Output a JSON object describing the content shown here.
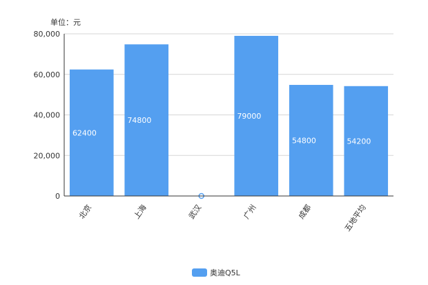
{
  "chart_data": {
    "type": "bar",
    "unit_label": "单位：元",
    "categories": [
      "北京",
      "上海",
      "武汉",
      "广州",
      "成都",
      "五地平均"
    ],
    "series": [
      {
        "name": "奥迪Q5L",
        "color": "#549ff0",
        "values": [
          62400,
          74800,
          0,
          79000,
          54800,
          54200
        ],
        "labels": [
          "62400",
          "74800",
          "",
          "79000",
          "54800",
          "54200"
        ]
      }
    ],
    "yticks": [
      "0",
      "20,000",
      "40,000",
      "60,000",
      "80,000"
    ],
    "ylim": [
      0,
      80000
    ],
    "grid": true,
    "legend_position": "bottom-center"
  }
}
